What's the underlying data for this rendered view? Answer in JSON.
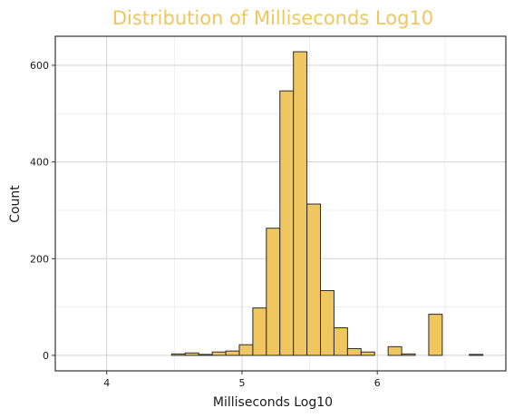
{
  "chart_data": {
    "type": "bar",
    "title": "Distribution of Milliseconds Log10",
    "xlabel": "Milliseconds Log10",
    "ylabel": "Count",
    "xlim": [
      3.62,
      6.95
    ],
    "ylim": [
      -32,
      660
    ],
    "xticks": [
      4,
      5,
      6
    ],
    "yticks": [
      0,
      200,
      400,
      600
    ],
    "grid": true,
    "bar_color": "#f0c660",
    "bar_edge_color": "#2b2b2b",
    "title_color": "#f0c660",
    "bins": [
      {
        "x0": 3.78,
        "x1": 3.88,
        "count": 0
      },
      {
        "x0": 3.88,
        "x1": 3.98,
        "count": 0
      },
      {
        "x0": 3.98,
        "x1": 4.08,
        "count": 0
      },
      {
        "x0": 4.08,
        "x1": 4.18,
        "count": 0
      },
      {
        "x0": 4.18,
        "x1": 4.28,
        "count": 0
      },
      {
        "x0": 4.28,
        "x1": 4.38,
        "count": 0
      },
      {
        "x0": 4.38,
        "x1": 4.48,
        "count": 0
      },
      {
        "x0": 4.48,
        "x1": 4.58,
        "count": 3
      },
      {
        "x0": 4.58,
        "x1": 4.68,
        "count": 5
      },
      {
        "x0": 4.68,
        "x1": 4.78,
        "count": 2
      },
      {
        "x0": 4.78,
        "x1": 4.88,
        "count": 7
      },
      {
        "x0": 4.88,
        "x1": 4.98,
        "count": 9
      },
      {
        "x0": 4.98,
        "x1": 5.08,
        "count": 22
      },
      {
        "x0": 5.08,
        "x1": 5.18,
        "count": 98
      },
      {
        "x0": 5.18,
        "x1": 5.28,
        "count": 263
      },
      {
        "x0": 5.28,
        "x1": 5.38,
        "count": 547
      },
      {
        "x0": 5.38,
        "x1": 5.48,
        "count": 628
      },
      {
        "x0": 5.48,
        "x1": 5.58,
        "count": 313
      },
      {
        "x0": 5.58,
        "x1": 5.68,
        "count": 134
      },
      {
        "x0": 5.68,
        "x1": 5.78,
        "count": 57
      },
      {
        "x0": 5.78,
        "x1": 5.88,
        "count": 14
      },
      {
        "x0": 5.88,
        "x1": 5.98,
        "count": 7
      },
      {
        "x0": 5.98,
        "x1": 6.08,
        "count": 0
      },
      {
        "x0": 6.08,
        "x1": 6.18,
        "count": 18
      },
      {
        "x0": 6.18,
        "x1": 6.28,
        "count": 3
      },
      {
        "x0": 6.28,
        "x1": 6.38,
        "count": 0
      },
      {
        "x0": 6.38,
        "x1": 6.48,
        "count": 85
      },
      {
        "x0": 6.48,
        "x1": 6.58,
        "count": 0
      },
      {
        "x0": 6.58,
        "x1": 6.68,
        "count": 0
      },
      {
        "x0": 6.68,
        "x1": 6.78,
        "count": 2
      }
    ]
  }
}
